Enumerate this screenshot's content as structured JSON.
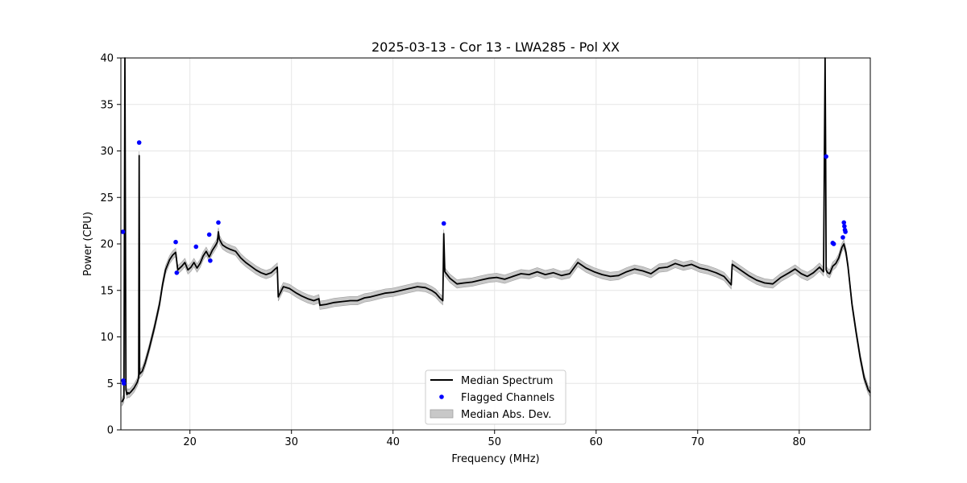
{
  "chart_data": {
    "type": "line",
    "title": "2025-03-13 - Cor 13 - LWA285 - Pol XX",
    "xlabel": "Frequency (MHz)",
    "ylabel": "Power (CPU)",
    "xlim": [
      13.2,
      87.0
    ],
    "ylim": [
      0,
      40
    ],
    "xticks": [
      20,
      30,
      40,
      50,
      60,
      70,
      80
    ],
    "yticks": [
      0,
      5,
      10,
      15,
      20,
      25,
      30,
      35,
      40
    ],
    "grid": true,
    "legend_position": "lower-center",
    "colors": {
      "median": "#000000",
      "flagged": "#0000ff",
      "mad_band": "#c8c8c8",
      "mad_edge": "#a0a0a0"
    },
    "series": [
      {
        "name": "Median Spectrum",
        "kind": "line",
        "x": [
          13.3,
          13.5,
          13.6,
          13.7,
          13.8,
          13.9,
          14.0,
          14.2,
          14.5,
          14.8,
          14.95,
          15.0,
          15.05,
          15.3,
          15.6,
          16.0,
          16.5,
          17.0,
          17.3,
          17.6,
          18.0,
          18.3,
          18.6,
          18.8,
          19.2,
          19.5,
          19.8,
          20.1,
          20.4,
          20.7,
          21.0,
          21.3,
          21.6,
          21.9,
          22.2,
          22.5,
          22.7,
          22.8,
          22.9,
          23.2,
          23.6,
          24.0,
          24.5,
          25.0,
          25.5,
          26.0,
          26.5,
          27.0,
          27.5,
          28.0,
          28.4,
          28.6,
          28.7,
          29.2,
          29.8,
          30.5,
          31.0,
          31.6,
          32.2,
          32.7,
          32.8,
          33.4,
          34.2,
          35.0,
          35.8,
          36.5,
          37.2,
          37.8,
          38.5,
          39.2,
          40.0,
          40.8,
          41.6,
          42.4,
          43.2,
          43.8,
          44.2,
          44.6,
          44.9,
          45.0,
          45.1,
          45.6,
          46.3,
          47.0,
          47.8,
          48.6,
          49.4,
          50.2,
          51.0,
          51.8,
          52.6,
          53.4,
          54.2,
          55.0,
          55.8,
          56.6,
          57.4,
          58.2,
          59.0,
          59.8,
          60.6,
          61.4,
          62.2,
          63.0,
          63.8,
          64.6,
          65.4,
          66.2,
          67.0,
          67.8,
          68.6,
          69.4,
          70.2,
          71.0,
          71.8,
          72.6,
          73.3,
          73.4,
          74.2,
          75.0,
          75.8,
          76.6,
          77.4,
          78.2,
          79.0,
          79.6,
          80.2,
          80.8,
          81.4,
          82.0,
          82.4,
          82.55,
          82.6,
          82.65,
          82.8,
          83.0,
          83.3,
          83.6,
          83.9,
          84.2,
          84.4,
          84.6,
          84.8,
          85.2,
          85.6,
          86.0,
          86.4,
          86.8,
          87.0
        ],
        "y": [
          3.0,
          3.4,
          40.0,
          4.3,
          3.8,
          4.0,
          3.9,
          4.1,
          4.5,
          5.1,
          5.6,
          29.5,
          6.0,
          6.3,
          7.2,
          8.8,
          11.0,
          13.5,
          15.6,
          17.2,
          18.3,
          18.8,
          19.1,
          17.2,
          17.6,
          18.0,
          17.2,
          17.5,
          18.0,
          17.4,
          17.9,
          18.7,
          19.2,
          18.6,
          19.3,
          19.8,
          20.2,
          21.3,
          20.5,
          19.9,
          19.6,
          19.4,
          19.2,
          18.5,
          18.0,
          17.6,
          17.2,
          16.9,
          16.7,
          16.9,
          17.3,
          17.5,
          14.3,
          15.4,
          15.2,
          14.7,
          14.4,
          14.1,
          13.9,
          14.1,
          13.4,
          13.5,
          13.7,
          13.8,
          13.9,
          13.9,
          14.2,
          14.3,
          14.5,
          14.7,
          14.8,
          15.0,
          15.2,
          15.4,
          15.3,
          15.0,
          14.7,
          14.2,
          13.9,
          21.1,
          17.0,
          16.3,
          15.7,
          15.8,
          15.9,
          16.1,
          16.3,
          16.4,
          16.2,
          16.5,
          16.8,
          16.7,
          17.0,
          16.7,
          16.9,
          16.6,
          16.8,
          18.0,
          17.4,
          17.0,
          16.7,
          16.5,
          16.6,
          17.0,
          17.3,
          17.1,
          16.8,
          17.4,
          17.5,
          17.9,
          17.6,
          17.8,
          17.4,
          17.2,
          16.9,
          16.5,
          15.6,
          17.8,
          17.2,
          16.6,
          16.1,
          15.8,
          15.7,
          16.4,
          16.9,
          17.3,
          16.8,
          16.5,
          16.9,
          17.5,
          17.0,
          40.0,
          29.4,
          17.2,
          16.9,
          16.8,
          17.6,
          17.9,
          18.5,
          19.6,
          20.0,
          19.1,
          17.6,
          13.5,
          10.5,
          7.8,
          5.6,
          4.3,
          4.0
        ],
        "color": "#000000"
      },
      {
        "name": "Flagged Channels",
        "kind": "scatter",
        "x": [
          13.4,
          13.45,
          13.5,
          15.0,
          18.6,
          18.7,
          20.6,
          21.9,
          22.0,
          22.8,
          45.0,
          82.65,
          83.3,
          83.4,
          84.3,
          84.4,
          84.45,
          84.5,
          84.55
        ],
        "y": [
          21.3,
          5.3,
          5.0,
          30.9,
          20.2,
          16.9,
          19.7,
          21.0,
          18.2,
          22.3,
          22.2,
          29.4,
          20.1,
          20.0,
          20.7,
          22.3,
          21.9,
          21.5,
          21.3
        ],
        "color": "#0000ff"
      },
      {
        "name": "Median Abs. Dev.",
        "kind": "band",
        "half_width": 0.45,
        "color": "#c8c8c8"
      }
    ]
  }
}
